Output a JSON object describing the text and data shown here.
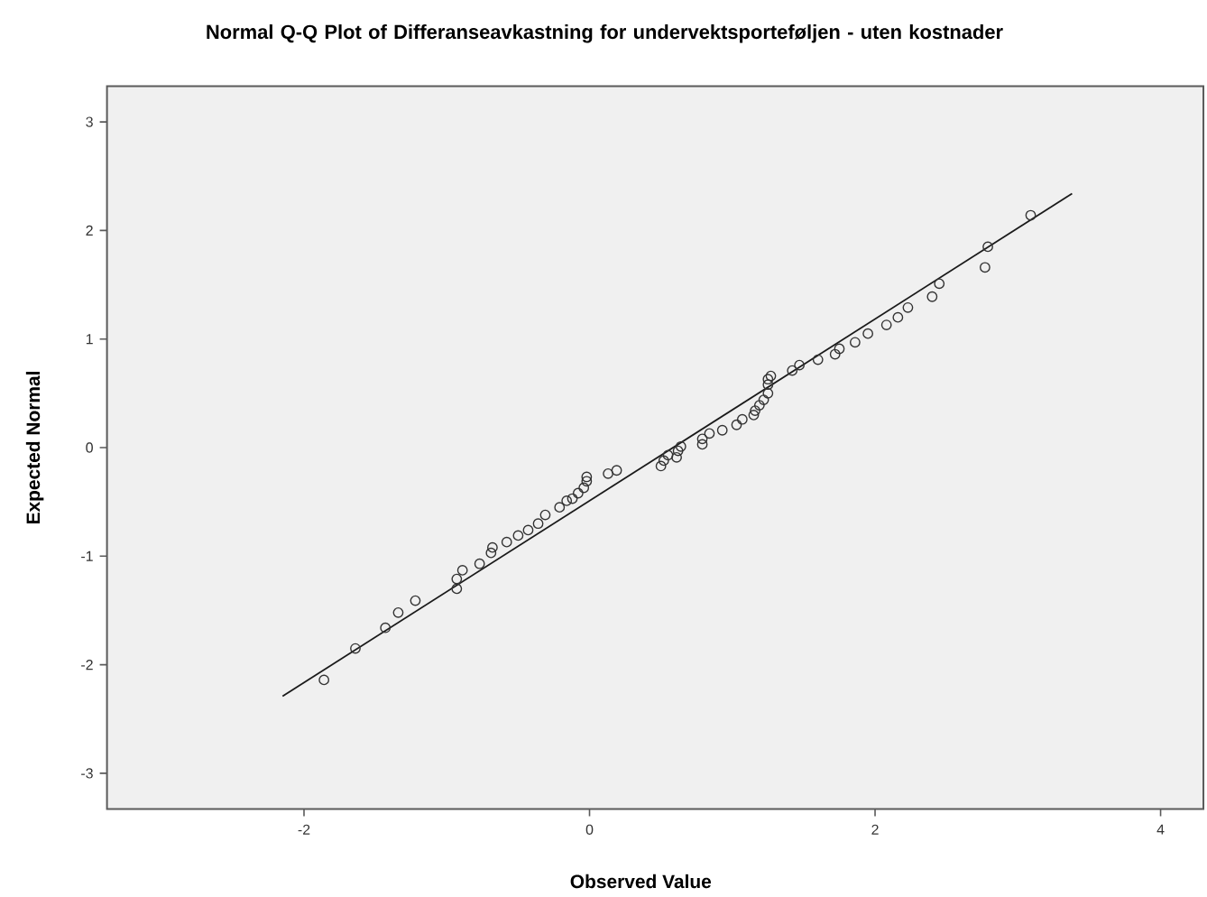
{
  "chart_data": {
    "type": "scatter",
    "title": "Normal Q-Q Plot of Differanseavkastning for undervektsporteføljen - uten kostnader",
    "xlabel": "Observed Value",
    "ylabel": "Expected Normal",
    "xlim": [
      -3.38,
      4.3
    ],
    "ylim": [
      -3.33,
      3.33
    ],
    "xticks": [
      -2,
      0,
      2,
      4
    ],
    "yticks": [
      -3,
      -2,
      -1,
      0,
      1,
      2,
      3
    ],
    "grid": false,
    "series": [
      {
        "color": "#333333",
        "marker": "circle",
        "x": [
          -1.86,
          -1.64,
          -1.43,
          -1.34,
          -1.22,
          -0.93,
          -0.93,
          -0.89,
          -0.77,
          -0.69,
          -0.68,
          -0.58,
          -0.5,
          -0.43,
          -0.36,
          -0.31,
          -0.21,
          -0.16,
          -0.12,
          -0.08,
          -0.04,
          -0.02,
          -0.02,
          0.13,
          0.19,
          0.5,
          0.52,
          0.55,
          0.61,
          0.62,
          0.64,
          0.79,
          0.79,
          0.84,
          0.93,
          1.03,
          1.07,
          1.15,
          1.16,
          1.19,
          1.22,
          1.25,
          1.25,
          1.25,
          1.27,
          1.42,
          1.47,
          1.6,
          1.72,
          1.75,
          1.86,
          1.95,
          2.08,
          2.16,
          2.23,
          2.4,
          2.45,
          2.77,
          2.79,
          3.09
        ],
        "values": [
          -2.14,
          -1.85,
          -1.66,
          -1.52,
          -1.41,
          -1.3,
          -1.21,
          -1.13,
          -1.07,
          -0.97,
          -0.92,
          -0.87,
          -0.81,
          -0.76,
          -0.7,
          -0.62,
          -0.55,
          -0.49,
          -0.47,
          -0.42,
          -0.37,
          -0.31,
          -0.27,
          -0.24,
          -0.21,
          -0.17,
          -0.12,
          -0.07,
          -0.09,
          -0.03,
          0.01,
          0.03,
          0.08,
          0.13,
          0.16,
          0.21,
          0.26,
          0.3,
          0.34,
          0.39,
          0.44,
          0.5,
          0.58,
          0.63,
          0.66,
          0.71,
          0.76,
          0.81,
          0.86,
          0.91,
          0.97,
          1.05,
          1.13,
          1.2,
          1.29,
          1.39,
          1.51,
          1.66,
          1.85,
          2.14
        ]
      },
      {
        "type": "line",
        "color": "#1a1a1a",
        "line_style": "solid",
        "marker": "none",
        "x": [
          -2.15,
          3.38
        ],
        "values": [
          -2.29,
          2.34
        ]
      }
    ]
  }
}
